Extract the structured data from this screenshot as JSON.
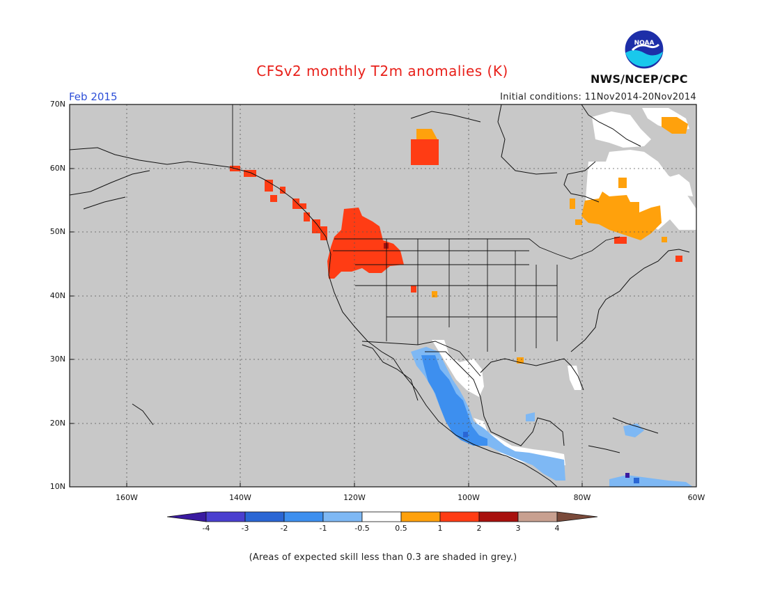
{
  "title": "CFSv2 monthly T2m anomalies (K)",
  "subtitle": "Feb 2015",
  "initial_conditions": "Initial conditions: 11Nov2014-20Nov2014",
  "organization": "NWS/NCEP/CPC",
  "logo_text": "NOAA",
  "footer_note": "(Areas of expected skill less than 0.3 are shaded in grey.)",
  "map": {
    "lon_range": [
      -170,
      -60
    ],
    "lat_range": [
      10,
      70
    ],
    "lat_labels": [
      "70N",
      "60N",
      "50N",
      "40N",
      "30N",
      "20N",
      "10N"
    ],
    "lon_labels": [
      "160W",
      "140W",
      "120W",
      "100W",
      "80W",
      "60W"
    ],
    "background_color": "#c8c8c8"
  },
  "colorbar": {
    "labels": [
      "-4",
      "-3",
      "-2",
      "-1",
      "-0.5",
      "0.5",
      "1",
      "2",
      "3",
      "4"
    ],
    "colors": [
      "#3a1aa0",
      "#4a3fcf",
      "#2a66d4",
      "#3d8fef",
      "#7eb8f4",
      "#ffffff",
      "#ffa10c",
      "#ff3c14",
      "#a8100d",
      "#c8a090",
      "#7a4a3a"
    ]
  },
  "anomaly_regions": [
    {
      "name": "pacific-northwest-warm",
      "category": "1 to 2",
      "color": "#ff3c14"
    },
    {
      "name": "alaska-panhandle-warm",
      "category": "1 to 2",
      "color": "#ff3c14"
    },
    {
      "name": "northwest-territories-warm",
      "category": "1 to 2",
      "color": "#ff3c14"
    },
    {
      "name": "quebec-warm",
      "category": "0.5 to 1",
      "color": "#ffa10c"
    },
    {
      "name": "mexico-cold",
      "category": "-2 to -1",
      "color": "#3d8fef"
    },
    {
      "name": "central-america-cold",
      "category": "-1 to -0.5",
      "color": "#7eb8f4"
    },
    {
      "name": "caribbean-cold",
      "category": "-1 to -0.5",
      "color": "#7eb8f4"
    }
  ]
}
